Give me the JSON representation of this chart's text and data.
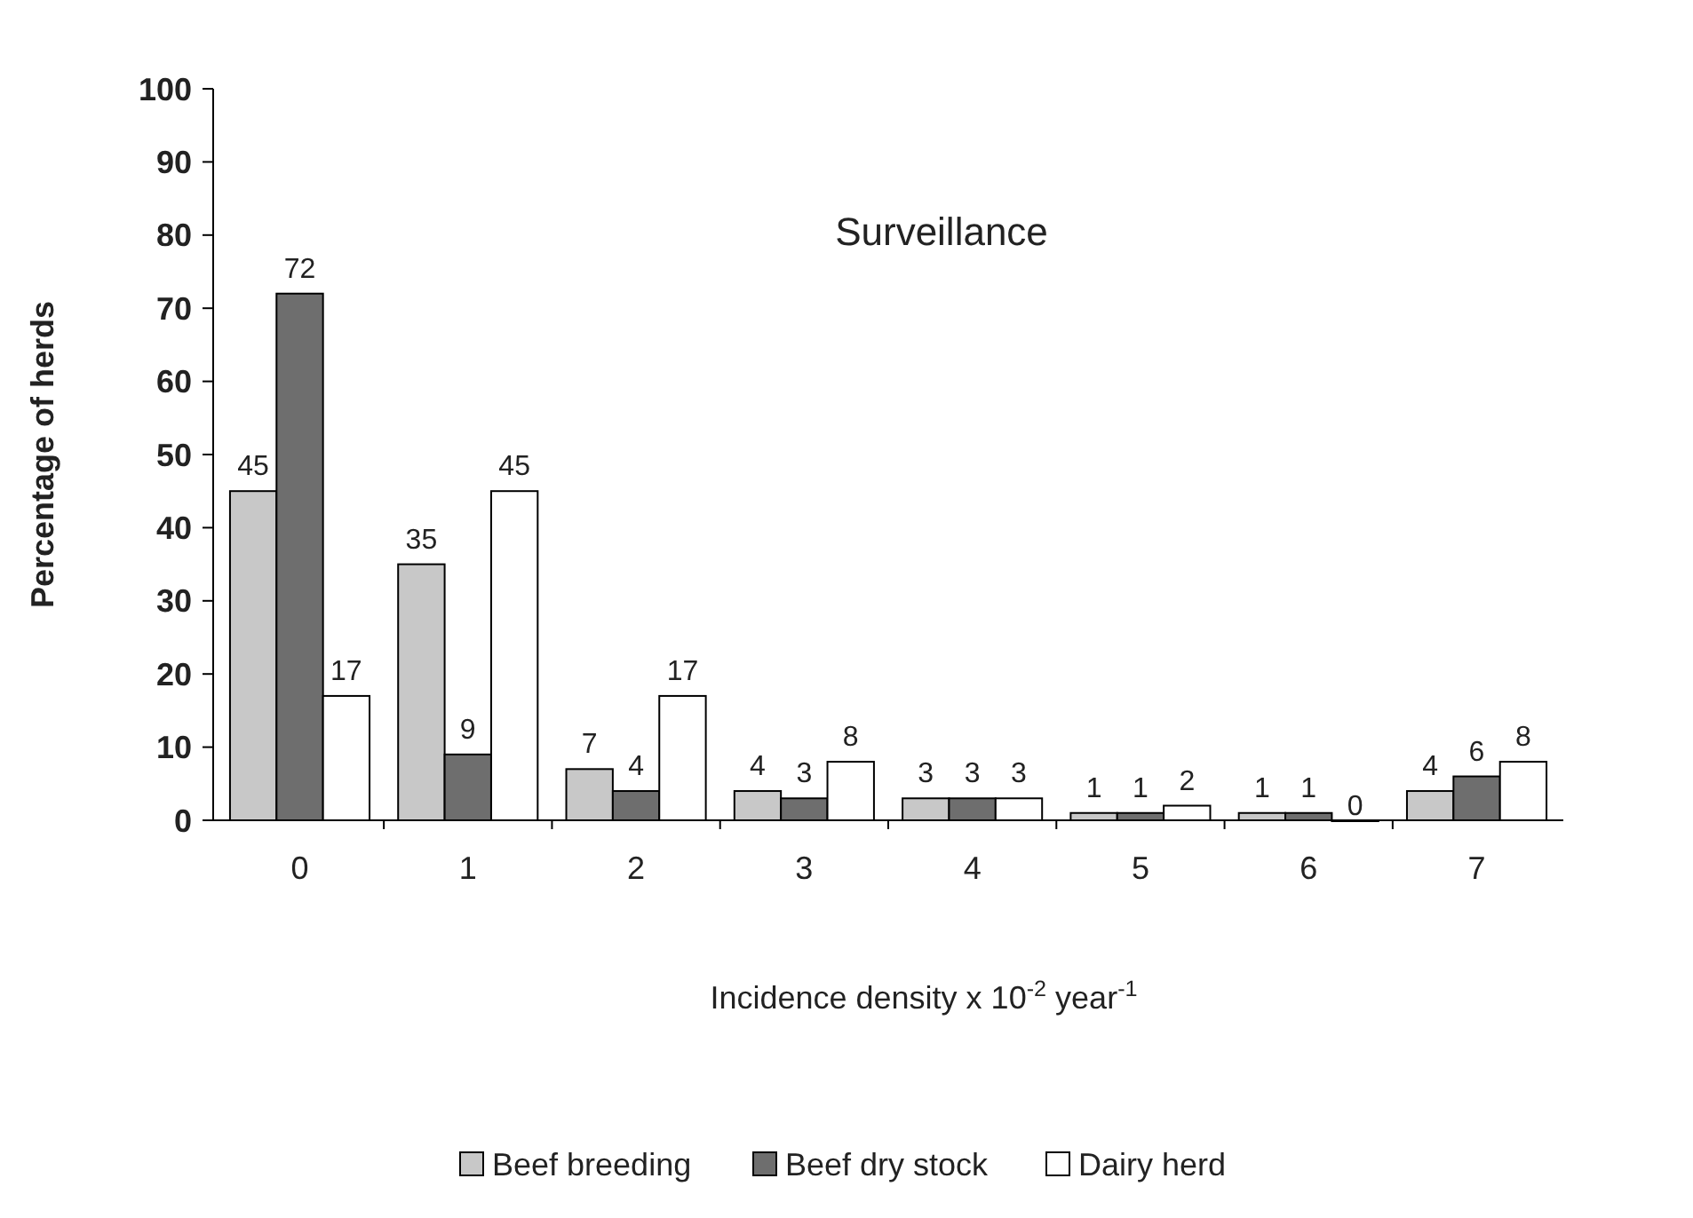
{
  "chart_data": {
    "type": "bar",
    "title": "Surveillance",
    "xlabel": "Incidence density x 10$^{-2}$ year$^{-1}$",
    "ylabel": "Percentage of herds",
    "categories": [
      "0",
      "1",
      "2",
      "3",
      "4",
      "5",
      "6",
      "7"
    ],
    "series": [
      {
        "name": "Beef breeding",
        "color": "#c8c8c8",
        "values": [
          45,
          35,
          7,
          4,
          3,
          1,
          1,
          4
        ]
      },
      {
        "name": "Beef dry stock",
        "color": "#6e6e6e",
        "values": [
          72,
          9,
          4,
          3,
          3,
          1,
          1,
          6
        ]
      },
      {
        "name": "Dairy herd",
        "color": "#ffffff",
        "values": [
          17,
          45,
          17,
          8,
          3,
          2,
          0,
          8
        ]
      }
    ],
    "ylim": [
      0,
      100
    ],
    "yticks": [
      0,
      10,
      20,
      30,
      40,
      50,
      60,
      70,
      80,
      90,
      100
    ],
    "data_labels": true,
    "legend": "bottom"
  }
}
